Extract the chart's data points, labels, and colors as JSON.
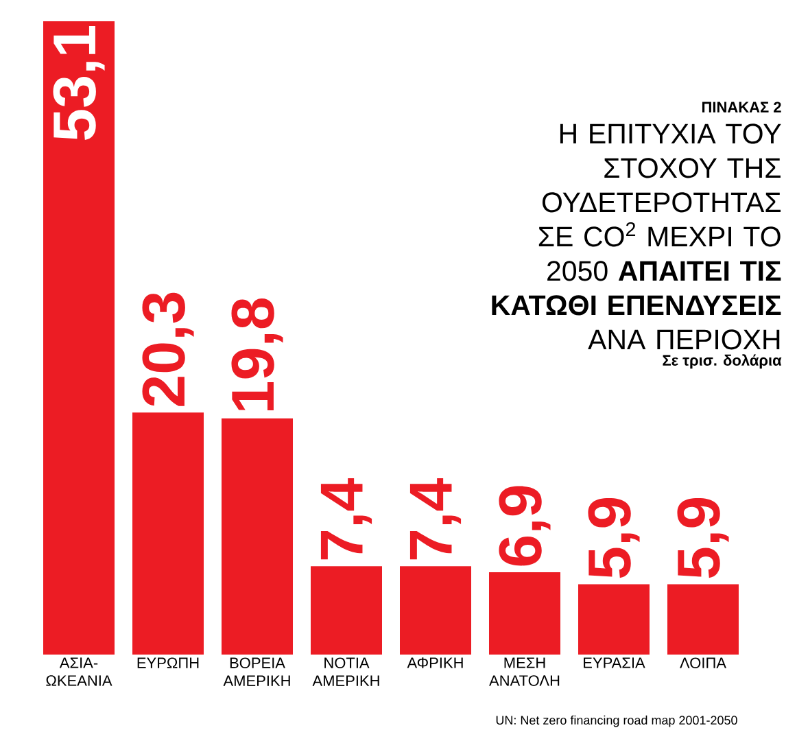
{
  "chart_data": {
    "type": "bar",
    "title": "Η ΕΠΙΤΥΧΙΑ ΤΟΥ ΣΤΟΧΟΥ ΤΗΣ ΟΥΔΕΤΕΡΟΤΗΤΑΣ ΣΕ CO$^{2}$ ΜΕΧΡΙ ΤΟ 2050 **ΑΠΑΙΤΕΙ ΤΙΣ ΚΑΤΩΘΙ ΕΠΕΝΔΥΣΕΙΣ** ΑΝΑ ΠΕΡΙΟΧΗ",
    "subtitle": "Σε τρισ. δολάρια",
    "annotations": [
      "ΠΙΝΑΚΑΣ 2",
      "UN: Net zero financing road map 2001-2050"
    ],
    "categories": [
      "ΑΣΙΑ-ΩΚΕΑΝΙΑ",
      "ΕΥΡΩΠΗ",
      "ΒΟΡΕΙΑ ΑΜΕΡΙΚΗ",
      "ΝΟΤΙΑ ΑΜΕΡΙΚΗ",
      "ΑΦΡΙΚΗ",
      "ΜΕΣΗ ΑΝΑΤΟΛΗ",
      "ΕΥΡΑΣΙΑ",
      "ΛΟΙΠΑ"
    ],
    "values": [
      53.1,
      20.3,
      19.8,
      7.4,
      7.4,
      6.9,
      5.9,
      5.9
    ],
    "value_labels": [
      "53,1",
      "20,3",
      "19,8",
      "7,4",
      "7,4",
      "6,9",
      "5,9",
      "5,9"
    ],
    "color": "#ec1c24"
  }
}
